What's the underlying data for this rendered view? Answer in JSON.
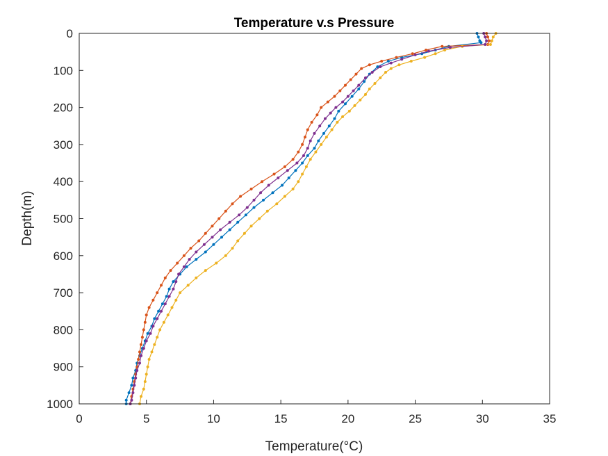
{
  "chart_data": {
    "type": "line",
    "title": "Temperature v.s Pressure",
    "xlabel": "Temperature(°C)",
    "ylabel": "Depth(m)",
    "xlim": [
      0,
      35
    ],
    "ylim": [
      0,
      1000
    ],
    "y_reversed": true,
    "grid": false,
    "legend": "none",
    "x_ticks": [
      "0",
      "5",
      "10",
      "15",
      "20",
      "25",
      "30",
      "35"
    ],
    "y_ticks": [
      "0",
      "100",
      "200",
      "300",
      "400",
      "500",
      "600",
      "700",
      "800",
      "900",
      "1000"
    ],
    "series": [
      {
        "color": "#0072BD",
        "points": [
          [
            29.6,
            0
          ],
          [
            29.7,
            10
          ],
          [
            29.8,
            20
          ],
          [
            29.9,
            25
          ],
          [
            27.5,
            35
          ],
          [
            26.5,
            45
          ],
          [
            25.5,
            55
          ],
          [
            24.0,
            65
          ],
          [
            23.0,
            75
          ],
          [
            22.2,
            90
          ],
          [
            21.6,
            110
          ],
          [
            21.2,
            130
          ],
          [
            20.8,
            150
          ],
          [
            20.3,
            170
          ],
          [
            19.8,
            190
          ],
          [
            19.3,
            210
          ],
          [
            19.0,
            230
          ],
          [
            18.6,
            250
          ],
          [
            18.2,
            270
          ],
          [
            17.8,
            290
          ],
          [
            17.5,
            310
          ],
          [
            17.0,
            330
          ],
          [
            16.6,
            350
          ],
          [
            16.1,
            370
          ],
          [
            15.6,
            390
          ],
          [
            15.1,
            410
          ],
          [
            14.4,
            430
          ],
          [
            13.7,
            450
          ],
          [
            13.0,
            470
          ],
          [
            12.4,
            490
          ],
          [
            11.8,
            510
          ],
          [
            11.2,
            530
          ],
          [
            10.6,
            550
          ],
          [
            10.0,
            570
          ],
          [
            9.4,
            590
          ],
          [
            8.7,
            610
          ],
          [
            8.0,
            630
          ],
          [
            7.5,
            650
          ],
          [
            7.0,
            670
          ],
          [
            6.7,
            690
          ],
          [
            6.5,
            710
          ],
          [
            6.2,
            730
          ],
          [
            5.9,
            750
          ],
          [
            5.6,
            770
          ],
          [
            5.4,
            790
          ],
          [
            5.1,
            810
          ],
          [
            4.9,
            830
          ],
          [
            4.7,
            850
          ],
          [
            4.5,
            870
          ],
          [
            4.3,
            890
          ],
          [
            4.2,
            910
          ],
          [
            4.0,
            930
          ],
          [
            3.9,
            950
          ],
          [
            3.7,
            970
          ],
          [
            3.5,
            990
          ],
          [
            3.5,
            1000
          ]
        ]
      },
      {
        "color": "#D95319",
        "points": [
          [
            30.3,
            0
          ],
          [
            30.4,
            10
          ],
          [
            30.5,
            20
          ],
          [
            30.4,
            30
          ],
          [
            27.0,
            35
          ],
          [
            25.8,
            45
          ],
          [
            24.8,
            55
          ],
          [
            23.6,
            65
          ],
          [
            22.5,
            75
          ],
          [
            21.6,
            85
          ],
          [
            21.0,
            95
          ],
          [
            20.6,
            110
          ],
          [
            20.2,
            125
          ],
          [
            19.8,
            140
          ],
          [
            19.4,
            155
          ],
          [
            19.0,
            170
          ],
          [
            18.5,
            185
          ],
          [
            18.0,
            200
          ],
          [
            17.7,
            220
          ],
          [
            17.3,
            240
          ],
          [
            17.0,
            260
          ],
          [
            16.8,
            280
          ],
          [
            16.6,
            300
          ],
          [
            16.3,
            320
          ],
          [
            15.9,
            340
          ],
          [
            15.3,
            360
          ],
          [
            14.5,
            380
          ],
          [
            13.6,
            400
          ],
          [
            12.8,
            420
          ],
          [
            12.0,
            440
          ],
          [
            11.4,
            460
          ],
          [
            10.9,
            480
          ],
          [
            10.4,
            500
          ],
          [
            9.9,
            520
          ],
          [
            9.4,
            540
          ],
          [
            8.9,
            560
          ],
          [
            8.3,
            580
          ],
          [
            7.8,
            600
          ],
          [
            7.3,
            620
          ],
          [
            6.8,
            640
          ],
          [
            6.4,
            660
          ],
          [
            6.1,
            680
          ],
          [
            5.8,
            700
          ],
          [
            5.5,
            720
          ],
          [
            5.2,
            740
          ],
          [
            5.0,
            760
          ],
          [
            4.9,
            780
          ],
          [
            4.8,
            800
          ],
          [
            4.7,
            820
          ],
          [
            4.6,
            840
          ],
          [
            4.5,
            860
          ],
          [
            4.4,
            880
          ],
          [
            4.3,
            900
          ],
          [
            4.2,
            920
          ],
          [
            4.1,
            940
          ],
          [
            4.0,
            960
          ],
          [
            3.9,
            980
          ],
          [
            3.8,
            1000
          ]
        ]
      },
      {
        "color": "#EDB120",
        "points": [
          [
            31.0,
            0
          ],
          [
            30.8,
            10
          ],
          [
            30.7,
            20
          ],
          [
            30.6,
            30
          ],
          [
            28.5,
            35
          ],
          [
            27.2,
            45
          ],
          [
            26.5,
            55
          ],
          [
            25.7,
            65
          ],
          [
            24.7,
            75
          ],
          [
            23.8,
            85
          ],
          [
            23.2,
            95
          ],
          [
            22.8,
            105
          ],
          [
            22.4,
            120
          ],
          [
            22.0,
            135
          ],
          [
            21.6,
            150
          ],
          [
            21.3,
            165
          ],
          [
            20.9,
            180
          ],
          [
            20.5,
            195
          ],
          [
            20.1,
            210
          ],
          [
            19.6,
            225
          ],
          [
            19.2,
            240
          ],
          [
            18.8,
            260
          ],
          [
            18.4,
            280
          ],
          [
            18.0,
            300
          ],
          [
            17.6,
            320
          ],
          [
            17.2,
            340
          ],
          [
            16.9,
            360
          ],
          [
            16.6,
            380
          ],
          [
            16.3,
            400
          ],
          [
            15.9,
            420
          ],
          [
            15.3,
            440
          ],
          [
            14.7,
            460
          ],
          [
            14.0,
            480
          ],
          [
            13.4,
            500
          ],
          [
            12.8,
            520
          ],
          [
            12.3,
            540
          ],
          [
            11.8,
            560
          ],
          [
            11.4,
            580
          ],
          [
            10.9,
            600
          ],
          [
            10.2,
            620
          ],
          [
            9.4,
            640
          ],
          [
            8.7,
            660
          ],
          [
            8.1,
            680
          ],
          [
            7.5,
            700
          ],
          [
            7.2,
            720
          ],
          [
            6.9,
            740
          ],
          [
            6.6,
            760
          ],
          [
            6.3,
            780
          ],
          [
            6.0,
            800
          ],
          [
            5.8,
            820
          ],
          [
            5.6,
            840
          ],
          [
            5.4,
            860
          ],
          [
            5.2,
            880
          ],
          [
            5.1,
            900
          ],
          [
            5.0,
            920
          ],
          [
            4.9,
            940
          ],
          [
            4.8,
            960
          ],
          [
            4.6,
            980
          ],
          [
            4.5,
            1000
          ]
        ]
      },
      {
        "color": "#7E2F8E",
        "points": [
          [
            30.1,
            0
          ],
          [
            30.2,
            10
          ],
          [
            30.3,
            20
          ],
          [
            30.2,
            30
          ],
          [
            27.6,
            38
          ],
          [
            26.0,
            48
          ],
          [
            25.0,
            58
          ],
          [
            24.0,
            70
          ],
          [
            23.2,
            80
          ],
          [
            22.4,
            90
          ],
          [
            21.8,
            105
          ],
          [
            21.3,
            120
          ],
          [
            20.8,
            140
          ],
          [
            20.4,
            155
          ],
          [
            20.0,
            170
          ],
          [
            19.6,
            185
          ],
          [
            19.1,
            200
          ],
          [
            18.7,
            215
          ],
          [
            18.3,
            230
          ],
          [
            17.9,
            250
          ],
          [
            17.5,
            270
          ],
          [
            17.2,
            290
          ],
          [
            17.0,
            310
          ],
          [
            16.7,
            330
          ],
          [
            16.2,
            350
          ],
          [
            15.5,
            370
          ],
          [
            14.8,
            390
          ],
          [
            14.1,
            410
          ],
          [
            13.5,
            430
          ],
          [
            13.0,
            450
          ],
          [
            12.5,
            470
          ],
          [
            11.9,
            490
          ],
          [
            11.2,
            510
          ],
          [
            10.5,
            530
          ],
          [
            9.9,
            550
          ],
          [
            9.3,
            570
          ],
          [
            8.7,
            590
          ],
          [
            8.2,
            610
          ],
          [
            7.8,
            630
          ],
          [
            7.4,
            650
          ],
          [
            7.2,
            670
          ],
          [
            7.0,
            690
          ],
          [
            6.7,
            710
          ],
          [
            6.4,
            730
          ],
          [
            6.1,
            750
          ],
          [
            5.8,
            770
          ],
          [
            5.5,
            790
          ],
          [
            5.3,
            810
          ],
          [
            5.0,
            830
          ],
          [
            4.8,
            850
          ],
          [
            4.6,
            870
          ],
          [
            4.5,
            890
          ],
          [
            4.3,
            910
          ],
          [
            4.2,
            930
          ],
          [
            4.1,
            950
          ],
          [
            4.0,
            970
          ],
          [
            3.9,
            990
          ],
          [
            3.8,
            1000
          ]
        ]
      }
    ]
  }
}
